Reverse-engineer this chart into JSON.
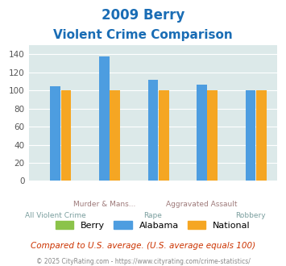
{
  "title_line1": "2009 Berry",
  "title_line2": "Violent Crime Comparison",
  "cat_labels_row1": [
    "",
    "Murder & Mans...",
    "",
    "Aggravated Assault",
    ""
  ],
  "cat_labels_row2": [
    "All Violent Crime",
    "",
    "Rape",
    "",
    "Robbery"
  ],
  "series": {
    "Berry": [
      0,
      0,
      0,
      0,
      0
    ],
    "Alabama": [
      105,
      138,
      112,
      106,
      100
    ],
    "National": [
      100,
      100,
      100,
      100,
      100
    ]
  },
  "colors": {
    "Berry": "#8bc34a",
    "Alabama": "#4d9de0",
    "National": "#f5a623"
  },
  "ylim": [
    0,
    150
  ],
  "yticks": [
    0,
    20,
    40,
    60,
    80,
    100,
    120,
    140
  ],
  "plot_bg": "#dce9e9",
  "grid_color": "#ffffff",
  "title_color": "#1a6db5",
  "xlabel_row1_color": "#9e7a7a",
  "xlabel_row2_color": "#7a9e9e",
  "footnote1": "Compared to U.S. average. (U.S. average equals 100)",
  "footnote2": "© 2025 CityRating.com - https://www.cityrating.com/crime-statistics/",
  "footnote1_color": "#cc3300",
  "footnote2_color": "#888888",
  "legend_labels": [
    "Berry",
    "Alabama",
    "National"
  ]
}
